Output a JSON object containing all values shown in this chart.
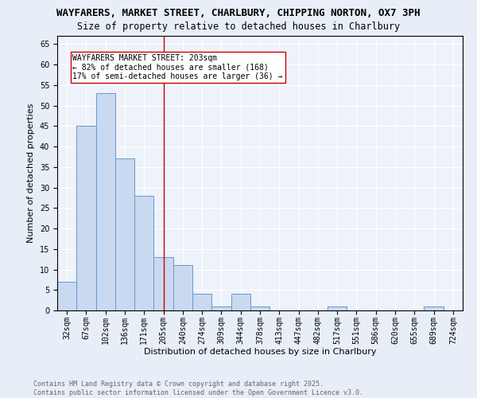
{
  "title_line1": "WAYFARERS, MARKET STREET, CHARLBURY, CHIPPING NORTON, OX7 3PH",
  "title_line2": "Size of property relative to detached houses in Charlbury",
  "xlabel": "Distribution of detached houses by size in Charlbury",
  "ylabel": "Number of detached properties",
  "bar_labels": [
    "32sqm",
    "67sqm",
    "102sqm",
    "136sqm",
    "171sqm",
    "205sqm",
    "240sqm",
    "274sqm",
    "309sqm",
    "344sqm",
    "378sqm",
    "413sqm",
    "447sqm",
    "482sqm",
    "517sqm",
    "551sqm",
    "586sqm",
    "620sqm",
    "655sqm",
    "689sqm",
    "724sqm"
  ],
  "bar_values": [
    7,
    45,
    53,
    37,
    28,
    13,
    11,
    4,
    1,
    4,
    1,
    0,
    0,
    0,
    1,
    0,
    0,
    0,
    0,
    1,
    0
  ],
  "bar_color": "#c9d9f0",
  "bar_edgecolor": "#6699cc",
  "bar_width": 1.0,
  "ylim": [
    0,
    67
  ],
  "yticks": [
    0,
    5,
    10,
    15,
    20,
    25,
    30,
    35,
    40,
    45,
    50,
    55,
    60,
    65
  ],
  "vline_x": 5,
  "vline_color": "#cc0000",
  "annotation_text": "WAYFARERS MARKET STREET: 203sqm\n← 82% of detached houses are smaller (168)\n17% of semi-detached houses are larger (36) →",
  "annotation_box_color": "#ffffff",
  "annotation_box_edgecolor": "#cc0000",
  "bg_color": "#e8eef8",
  "plot_bg_color": "#eef2fa",
  "footer_text": "Contains HM Land Registry data © Crown copyright and database right 2025.\nContains public sector information licensed under the Open Government Licence v3.0.",
  "title_fontsize": 9,
  "subtitle_fontsize": 8.5,
  "axis_label_fontsize": 8,
  "tick_fontsize": 7,
  "annotation_fontsize": 7,
  "footer_fontsize": 6
}
